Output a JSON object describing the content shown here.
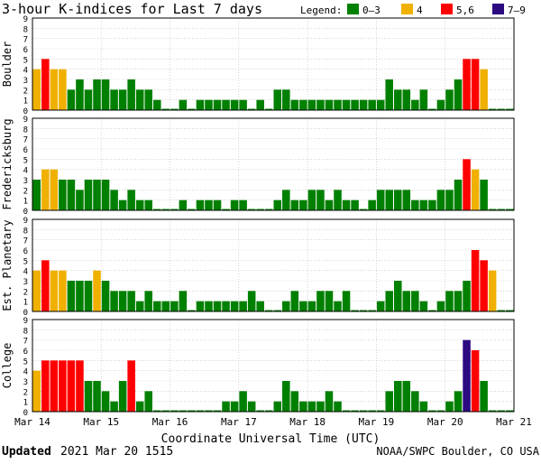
{
  "chart_data": {
    "type": "bar",
    "title": "3-hour K-indices for Last 7 days",
    "xlabel": "Coordinate Universal Time (UTC)",
    "ylim": [
      0,
      9
    ],
    "y_ticks": [
      "0",
      "1",
      "2",
      "3",
      "4",
      "5",
      "6",
      "7",
      "8",
      "9"
    ],
    "x_ticks": [
      "Mar 14",
      "Mar 15",
      "Mar 16",
      "Mar 17",
      "Mar 18",
      "Mar 19",
      "Mar 20",
      "Mar 21"
    ],
    "grid": true,
    "legend_position": "top-right",
    "legend": {
      "title": "Legend:",
      "items": [
        {
          "label": "0–3",
          "color": "#008000"
        },
        {
          "label": "4",
          "color": "#f0b000"
        },
        {
          "label": "5,6",
          "color": "#ff0000"
        },
        {
          "label": "7–9",
          "color": "#2c0a80"
        }
      ]
    },
    "series": [
      {
        "name": "Boulder",
        "values": [
          4,
          5,
          4,
          4,
          2,
          3,
          2,
          3,
          3,
          2,
          2,
          3,
          2,
          2,
          1,
          0,
          0,
          1,
          0,
          1,
          1,
          1,
          1,
          1,
          1,
          0,
          1,
          0,
          2,
          2,
          1,
          1,
          1,
          1,
          1,
          1,
          1,
          1,
          1,
          1,
          1,
          3,
          2,
          2,
          1,
          2,
          0,
          1,
          2,
          3,
          5,
          5,
          4,
          0,
          0,
          0
        ]
      },
      {
        "name": "Fredericksburg",
        "values": [
          3,
          4,
          4,
          3,
          3,
          2,
          3,
          3,
          3,
          2,
          1,
          2,
          1,
          1,
          0,
          0,
          0,
          1,
          0,
          1,
          1,
          1,
          0,
          1,
          1,
          0,
          0,
          0,
          1,
          2,
          1,
          1,
          2,
          2,
          1,
          2,
          1,
          1,
          0,
          1,
          2,
          2,
          2,
          2,
          1,
          1,
          1,
          2,
          2,
          3,
          5,
          4,
          3,
          0,
          0,
          0
        ]
      },
      {
        "name": "Est. Planetary",
        "values": [
          4,
          5,
          4,
          4,
          3,
          3,
          3,
          4,
          3,
          2,
          2,
          2,
          1,
          2,
          1,
          1,
          1,
          2,
          0,
          1,
          1,
          1,
          1,
          1,
          1,
          2,
          1,
          0,
          0,
          1,
          2,
          1,
          1,
          2,
          2,
          1,
          2,
          0,
          0,
          0,
          1,
          2,
          3,
          2,
          2,
          1,
          0,
          1,
          2,
          2,
          3,
          6,
          5,
          4,
          0,
          0
        ]
      },
      {
        "name": "College",
        "values": [
          4,
          5,
          5,
          5,
          5,
          5,
          3,
          3,
          2,
          1,
          3,
          5,
          1,
          2,
          0,
          0,
          0,
          0,
          0,
          0,
          0,
          0,
          1,
          1,
          2,
          1,
          0,
          0,
          1,
          3,
          2,
          1,
          1,
          1,
          2,
          1,
          0,
          0,
          0,
          0,
          0,
          2,
          3,
          3,
          2,
          1,
          0,
          0,
          1,
          2,
          7,
          6,
          3,
          0,
          0,
          0
        ]
      }
    ]
  },
  "footer": {
    "updated_label": "Updated",
    "updated_value": "2021 Mar 20 1515",
    "credit": "NOAA/SWPC Boulder, CO USA"
  }
}
